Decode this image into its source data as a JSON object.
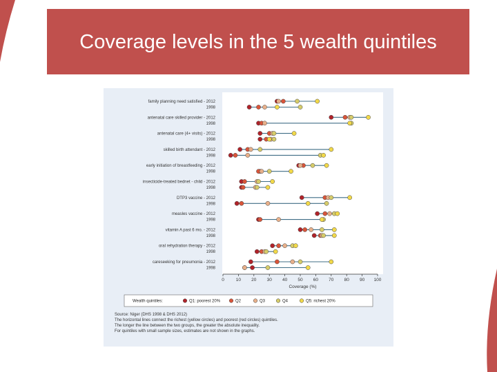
{
  "slide": {
    "title": "Coverage levels in the 5 wealth quintiles",
    "accent_color": "#c0504d"
  },
  "chart_data": {
    "type": "scatter",
    "title": "",
    "xlabel": "Coverage (%)",
    "xlim": [
      0,
      100
    ],
    "xticks": [
      0,
      10,
      20,
      30,
      40,
      50,
      60,
      70,
      80,
      90,
      100
    ],
    "grid": false,
    "years": [
      "2012",
      "1998"
    ],
    "indicators": [
      {
        "label": "family planning need satisfied",
        "rows": [
          [
            35,
            39,
            36,
            48,
            61
          ],
          [
            17,
            23,
            27,
            50,
            35
          ]
        ]
      },
      {
        "label": "antenatal care skilled provider",
        "rows": [
          [
            70,
            79,
            82,
            83,
            94
          ],
          [
            23,
            25,
            27,
            83,
            82
          ]
        ]
      },
      {
        "label": "antenatal care (4+ visits)",
        "rows": [
          [
            24,
            30,
            32,
            33,
            46
          ],
          [
            24,
            28,
            31,
            33,
            30
          ]
        ]
      },
      {
        "label": "skilled birth attendant",
        "rows": [
          [
            11,
            16,
            18,
            24,
            70
          ],
          [
            5,
            8,
            16,
            63,
            65
          ]
        ]
      },
      {
        "label": "early initiation of breastfeeding",
        "rows": [
          [
            49,
            52,
            50,
            58,
            67
          ],
          [
            24,
            23,
            25,
            30,
            44
          ]
        ]
      },
      {
        "label": "insecticide-treated bednet - child",
        "rows": [
          [
            12,
            14,
            22,
            23,
            32
          ],
          [
            12,
            13,
            21,
            22,
            29
          ]
        ]
      },
      {
        "label": "DTP3 vaccine",
        "rows": [
          [
            51,
            66,
            68,
            70,
            82
          ],
          [
            9,
            12,
            29,
            67,
            55
          ]
        ]
      },
      {
        "label": "measles vaccine",
        "rows": [
          [
            61,
            66,
            69,
            72,
            74
          ],
          [
            23,
            24,
            36,
            65,
            64
          ]
        ]
      },
      {
        "label": "vitamin A past 6 mo.",
        "rows": [
          [
            50,
            53,
            57,
            64,
            72
          ],
          [
            59,
            63,
            64,
            65,
            72
          ]
        ]
      },
      {
        "label": "oral rehydration therapy",
        "rows": [
          [
            32,
            36,
            40,
            45,
            47
          ],
          [
            22,
            25,
            27,
            28,
            34
          ]
        ]
      },
      {
        "label": "careseeking for pneumonia",
        "rows": [
          [
            18,
            35,
            45,
            50,
            70
          ],
          [
            19,
            14,
            14,
            29,
            55
          ]
        ]
      }
    ],
    "legend": {
      "title": "Wealth quintiles:",
      "placement": "bottom",
      "entries": [
        {
          "label": "Q1: poorest 20%",
          "color": "#b0232a"
        },
        {
          "label": "Q2",
          "color": "#d9553a"
        },
        {
          "label": "Q3",
          "color": "#e8b08a"
        },
        {
          "label": "Q4",
          "color": "#d6cc6a"
        },
        {
          "label": "Q5: richest 20%",
          "color": "#f2d94a"
        }
      ]
    },
    "line_color": "#3f6d85",
    "notes": [
      "Source: Niger (DHS 1998 & DHS 2012)",
      "The horizontal lines connect the richest (yellow circles) and poorest (red circles) quintiles.",
      "The longer the line between the two groups, the greater the absolute inequality.",
      "For quintiles with small sample sizes, estimates are not shown in the graphs."
    ]
  }
}
